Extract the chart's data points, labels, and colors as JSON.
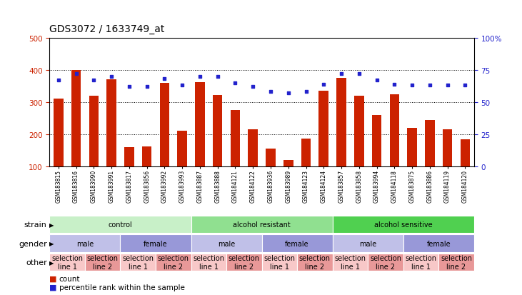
{
  "title": "GDS3072 / 1633749_at",
  "samples": [
    "GSM183815",
    "GSM183816",
    "GSM183990",
    "GSM183991",
    "GSM183817",
    "GSM183856",
    "GSM183992",
    "GSM183993",
    "GSM183887",
    "GSM183888",
    "GSM184121",
    "GSM184122",
    "GSM183936",
    "GSM183989",
    "GSM184123",
    "GSM184124",
    "GSM183857",
    "GSM183858",
    "GSM183994",
    "GSM184118",
    "GSM183875",
    "GSM183886",
    "GSM184119",
    "GSM184120"
  ],
  "counts": [
    310,
    400,
    320,
    370,
    160,
    162,
    360,
    210,
    362,
    322,
    275,
    215,
    155,
    120,
    187,
    335,
    375,
    320,
    260,
    325,
    220,
    245,
    215,
    185
  ],
  "percentiles": [
    67,
    72,
    67,
    70,
    62,
    62,
    68,
    63,
    70,
    70,
    65,
    62,
    58,
    57,
    58,
    64,
    72,
    72,
    67,
    64,
    63,
    63,
    63,
    63
  ],
  "bar_color": "#cc2200",
  "dot_color": "#2222cc",
  "ylim_left": [
    100,
    500
  ],
  "ylim_right": [
    0,
    100
  ],
  "yticks_left": [
    100,
    200,
    300,
    400,
    500
  ],
  "yticks_right": [
    0,
    25,
    50,
    75,
    100
  ],
  "grid_values": [
    200,
    300,
    400
  ],
  "strain_groups": [
    {
      "label": "control",
      "start": 0,
      "end": 8,
      "color": "#c8f0c8"
    },
    {
      "label": "alcohol resistant",
      "start": 8,
      "end": 16,
      "color": "#90e090"
    },
    {
      "label": "alcohol sensitive",
      "start": 16,
      "end": 24,
      "color": "#50d050"
    }
  ],
  "gender_groups": [
    {
      "label": "male",
      "start": 0,
      "end": 4,
      "color": "#c0c0e8"
    },
    {
      "label": "female",
      "start": 4,
      "end": 8,
      "color": "#9898d8"
    },
    {
      "label": "male",
      "start": 8,
      "end": 12,
      "color": "#c0c0e8"
    },
    {
      "label": "female",
      "start": 12,
      "end": 16,
      "color": "#9898d8"
    },
    {
      "label": "male",
      "start": 16,
      "end": 20,
      "color": "#c0c0e8"
    },
    {
      "label": "female",
      "start": 20,
      "end": 24,
      "color": "#9898d8"
    }
  ],
  "other_groups": [
    {
      "label": "selection\nline 1",
      "start": 0,
      "end": 2,
      "color": "#f8c8c8"
    },
    {
      "label": "selection\nline 2",
      "start": 2,
      "end": 4,
      "color": "#e89898"
    },
    {
      "label": "selection\nline 1",
      "start": 4,
      "end": 6,
      "color": "#f8c8c8"
    },
    {
      "label": "selection\nline 2",
      "start": 6,
      "end": 8,
      "color": "#e89898"
    },
    {
      "label": "selection\nline 1",
      "start": 8,
      "end": 10,
      "color": "#f8c8c8"
    },
    {
      "label": "selection\nline 2",
      "start": 10,
      "end": 12,
      "color": "#e89898"
    },
    {
      "label": "selection\nline 1",
      "start": 12,
      "end": 14,
      "color": "#f8c8c8"
    },
    {
      "label": "selection\nline 2",
      "start": 14,
      "end": 16,
      "color": "#e89898"
    },
    {
      "label": "selection\nline 1",
      "start": 16,
      "end": 18,
      "color": "#f8c8c8"
    },
    {
      "label": "selection\nline 2",
      "start": 18,
      "end": 20,
      "color": "#e89898"
    },
    {
      "label": "selection\nline 1",
      "start": 20,
      "end": 22,
      "color": "#f8c8c8"
    },
    {
      "label": "selection\nline 2",
      "start": 22,
      "end": 24,
      "color": "#e89898"
    }
  ],
  "row_labels": [
    "strain",
    "gender",
    "other"
  ],
  "legend_items": [
    {
      "label": "count",
      "color": "#cc2200"
    },
    {
      "label": "percentile rank within the sample",
      "color": "#2222cc"
    }
  ],
  "bg_color": "#ffffff",
  "spine_color": "#000000",
  "label_fontsize": 7,
  "tick_fontsize": 7.5,
  "sample_fontsize": 5.5,
  "title_fontsize": 10,
  "row_label_fontsize": 8
}
